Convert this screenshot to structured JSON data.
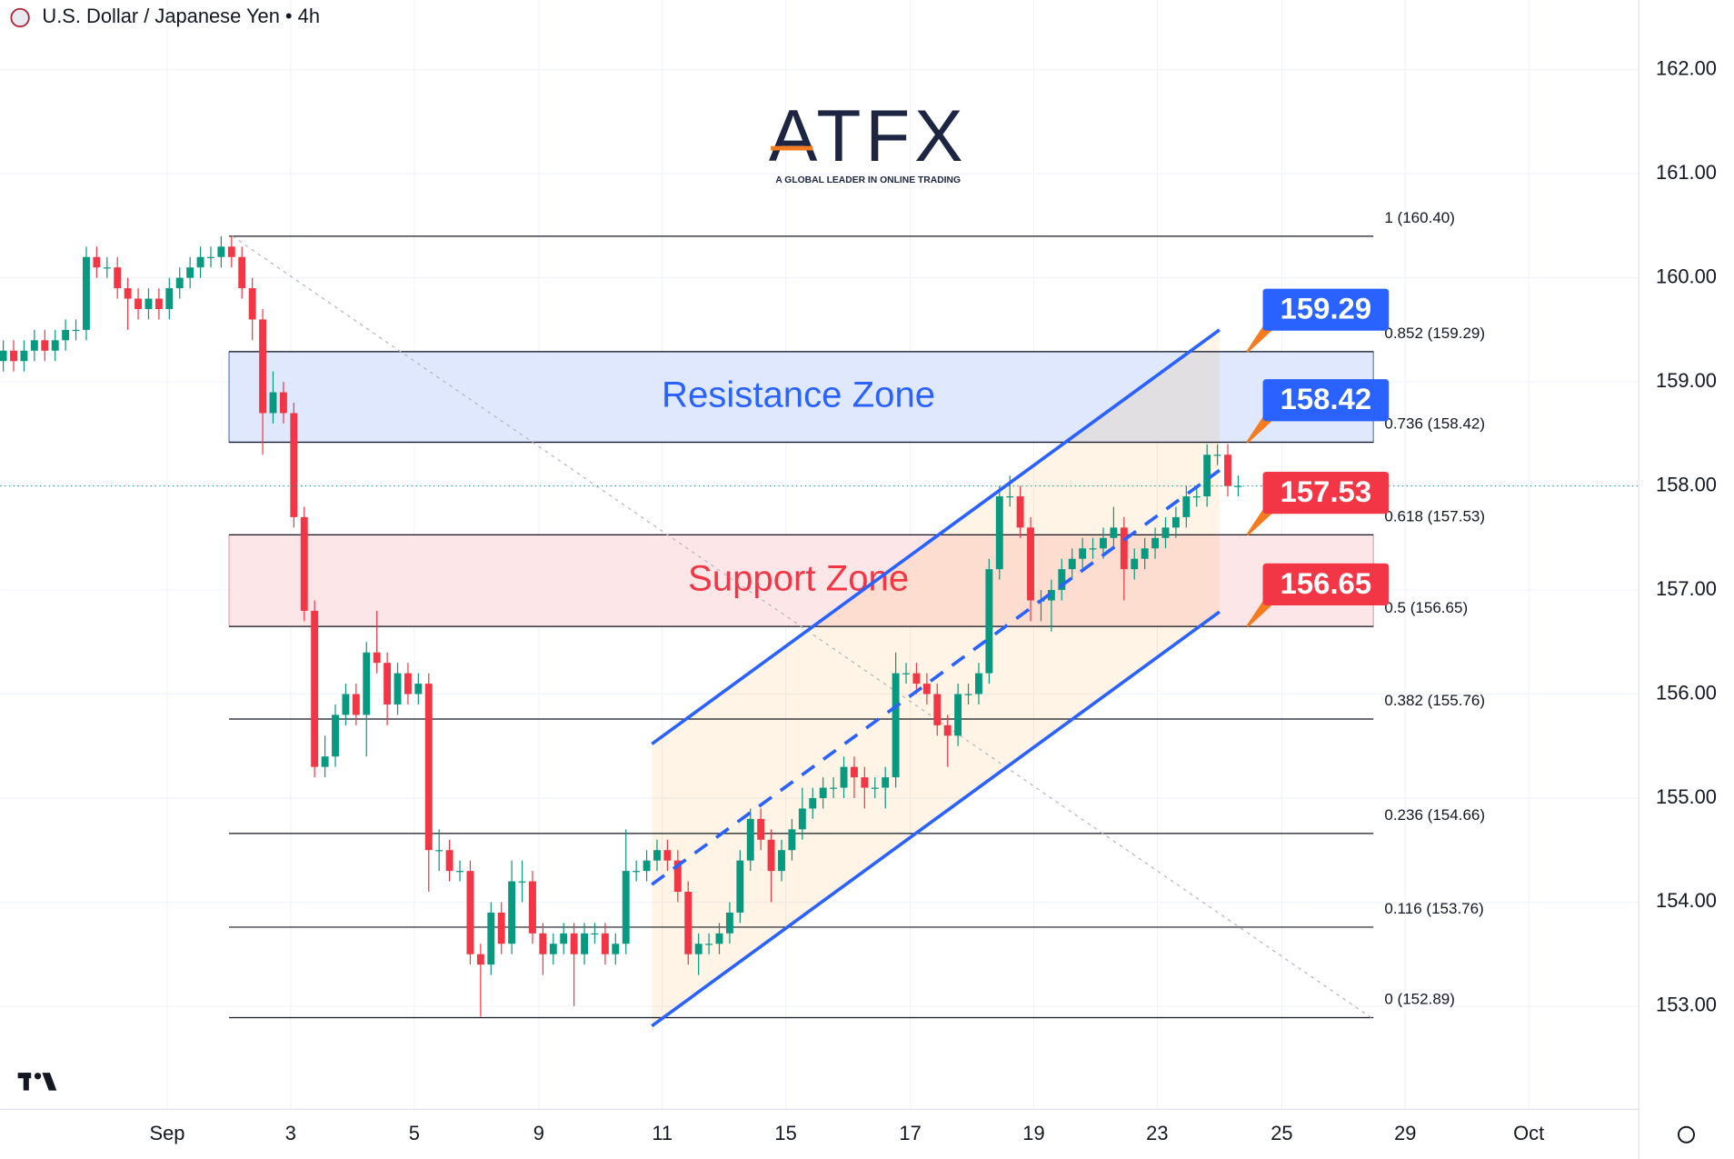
{
  "logo": {
    "name": "ATFX",
    "tagline": "A GLOBAL LEADER IN ONLINE TRADING"
  },
  "chart_data": {
    "type": "candlestick",
    "title": "U.S. Dollar / Japanese Yen • 4h",
    "up_color": "#089981",
    "down_color": "#f23645",
    "grid": true,
    "xlim": [
      -0.3,
      157.6
    ],
    "ylim": [
      152.01,
      162.67
    ],
    "xticks": [
      {
        "value": 15.8,
        "label": "Sep"
      },
      {
        "value": 27.7,
        "label": "3"
      },
      {
        "value": 39.6,
        "label": "5"
      },
      {
        "value": 51.6,
        "label": "9"
      },
      {
        "value": 63.5,
        "label": "11"
      },
      {
        "value": 75.4,
        "label": "15"
      },
      {
        "value": 87.4,
        "label": "17"
      },
      {
        "value": 99.3,
        "label": "19"
      },
      {
        "value": 111.2,
        "label": "23"
      },
      {
        "value": 123.2,
        "label": "25"
      },
      {
        "value": 135.1,
        "label": "29"
      },
      {
        "value": 147.0,
        "label": "Oct"
      }
    ],
    "yticks": [
      {
        "value": 153,
        "label": "153.00"
      },
      {
        "value": 154,
        "label": "154.00"
      },
      {
        "value": 155,
        "label": "155.00"
      },
      {
        "value": 156,
        "label": "156.00"
      },
      {
        "value": 157,
        "label": "157.00"
      },
      {
        "value": 158,
        "label": "158.00"
      },
      {
        "value": 159,
        "label": "159.00"
      },
      {
        "value": 160,
        "label": "160.00"
      },
      {
        "value": 161,
        "label": "161.00"
      },
      {
        "value": 162,
        "label": "162.00"
      }
    ],
    "x": [
      0,
      1,
      2,
      3,
      4,
      5,
      6,
      7,
      8,
      9,
      10,
      11,
      12,
      13,
      14,
      15,
      16,
      17,
      18,
      19,
      20,
      21,
      22,
      23,
      24,
      25,
      26,
      27,
      28,
      29,
      30,
      31,
      32,
      33,
      34,
      35,
      36,
      37,
      38,
      39,
      40,
      41,
      42,
      43,
      44,
      45,
      46,
      47,
      48,
      49,
      50,
      51,
      52,
      53,
      54,
      55,
      56,
      57,
      58,
      59,
      60,
      61,
      62,
      63,
      64,
      65,
      66,
      67,
      68,
      69,
      70,
      71,
      72,
      73,
      74,
      75,
      76,
      77,
      78,
      79,
      80,
      81,
      82,
      83,
      84,
      85,
      86,
      87,
      88,
      89,
      90,
      91,
      92,
      93,
      94,
      95,
      96,
      97,
      98,
      99,
      100,
      101,
      102,
      103,
      104,
      105,
      106,
      107,
      108,
      109,
      110,
      111,
      112,
      113,
      114,
      115,
      116,
      117,
      118,
      119
    ],
    "open": [
      159.2,
      159.3,
      159.2,
      159.3,
      159.4,
      159.3,
      159.4,
      159.5,
      159.5,
      160.2,
      160.1,
      160.1,
      159.9,
      159.8,
      159.7,
      159.8,
      159.7,
      159.9,
      160.0,
      160.1,
      160.2,
      160.2,
      160.3,
      160.2,
      159.9,
      159.6,
      158.7,
      158.9,
      158.7,
      157.7,
      156.8,
      155.3,
      155.4,
      155.8,
      156.0,
      155.8,
      156.4,
      156.3,
      155.9,
      156.2,
      156.0,
      156.1,
      154.5,
      154.5,
      154.3,
      154.3,
      153.5,
      153.4,
      153.9,
      153.6,
      154.2,
      154.2,
      153.7,
      153.5,
      153.6,
      153.7,
      153.5,
      153.7,
      153.7,
      153.5,
      153.6,
      154.3,
      154.3,
      154.4,
      154.5,
      154.4,
      154.1,
      153.5,
      153.6,
      153.6,
      153.7,
      153.9,
      154.4,
      154.8,
      154.6,
      154.3,
      154.5,
      154.7,
      154.9,
      155.0,
      155.1,
      155.1,
      155.3,
      155.2,
      155.1,
      155.1,
      155.2,
      156.2,
      156.2,
      156.1,
      156.0,
      155.7,
      155.6,
      156.0,
      156.0,
      156.2,
      157.2,
      157.9,
      157.9,
      157.6,
      156.9,
      156.9,
      157.0,
      157.2,
      157.3,
      157.4,
      157.4,
      157.5,
      157.6,
      157.2,
      157.3,
      157.4,
      157.5,
      157.6,
      157.7,
      157.9,
      157.9,
      158.3,
      158.3,
      158.0
    ],
    "high": [
      159.4,
      159.4,
      159.4,
      159.5,
      159.5,
      159.5,
      159.6,
      159.6,
      160.3,
      160.3,
      160.2,
      160.2,
      160.0,
      159.9,
      159.9,
      159.9,
      160.0,
      160.1,
      160.2,
      160.3,
      160.3,
      160.4,
      160.4,
      160.3,
      160.0,
      159.7,
      159.1,
      159.0,
      158.8,
      157.8,
      156.9,
      155.6,
      155.9,
      156.1,
      156.1,
      156.5,
      156.8,
      156.4,
      156.3,
      156.3,
      156.2,
      156.2,
      154.7,
      154.6,
      154.4,
      154.4,
      153.6,
      154.0,
      154.0,
      154.4,
      154.4,
      154.3,
      153.8,
      153.7,
      153.8,
      153.8,
      153.8,
      153.8,
      153.8,
      153.7,
      154.7,
      154.4,
      154.5,
      154.6,
      154.6,
      154.5,
      154.2,
      153.7,
      153.7,
      153.8,
      154.0,
      154.5,
      154.9,
      154.9,
      154.7,
      154.6,
      154.8,
      155.1,
      155.1,
      155.2,
      155.2,
      155.4,
      155.4,
      155.3,
      155.2,
      155.3,
      156.4,
      156.3,
      156.3,
      156.2,
      156.1,
      155.8,
      156.1,
      156.1,
      156.3,
      157.3,
      158.0,
      158.1,
      158.0,
      157.7,
      157.0,
      157.1,
      157.3,
      157.4,
      157.5,
      157.5,
      157.6,
      157.8,
      157.7,
      157.4,
      157.5,
      157.6,
      157.7,
      157.8,
      158.0,
      158.0,
      158.4,
      158.4,
      158.4,
      158.1
    ],
    "low": [
      159.1,
      159.1,
      159.1,
      159.2,
      159.2,
      159.2,
      159.3,
      159.4,
      159.4,
      160.0,
      160.0,
      159.8,
      159.5,
      159.6,
      159.6,
      159.6,
      159.6,
      159.8,
      159.9,
      160.0,
      160.1,
      160.1,
      160.1,
      159.8,
      159.4,
      158.3,
      158.6,
      158.6,
      157.6,
      156.7,
      155.2,
      155.2,
      155.3,
      155.7,
      155.7,
      155.4,
      156.2,
      155.7,
      155.8,
      155.9,
      155.9,
      154.1,
      154.3,
      154.2,
      154.2,
      153.4,
      152.9,
      153.3,
      153.5,
      153.5,
      154.0,
      153.6,
      153.3,
      153.4,
      153.5,
      153.0,
      153.4,
      153.6,
      153.4,
      153.4,
      153.5,
      154.2,
      154.2,
      154.3,
      154.3,
      154.0,
      153.4,
      153.3,
      153.5,
      153.5,
      153.6,
      153.8,
      154.3,
      154.5,
      154.0,
      154.2,
      154.4,
      154.6,
      154.8,
      154.9,
      155.0,
      155.0,
      155.0,
      154.9,
      155.0,
      154.9,
      155.1,
      156.1,
      156.0,
      155.9,
      155.6,
      155.3,
      155.5,
      155.9,
      155.9,
      156.1,
      157.1,
      157.8,
      157.5,
      156.7,
      156.7,
      156.6,
      156.9,
      157.1,
      157.2,
      157.3,
      157.3,
      157.4,
      156.9,
      157.1,
      157.2,
      157.3,
      157.4,
      157.5,
      157.6,
      157.8,
      157.8,
      158.2,
      157.9,
      157.9
    ],
    "close": [
      159.3,
      159.2,
      159.3,
      159.4,
      159.3,
      159.4,
      159.5,
      159.5,
      160.2,
      160.1,
      160.1,
      159.9,
      159.8,
      159.7,
      159.8,
      159.7,
      159.9,
      160.0,
      160.1,
      160.2,
      160.2,
      160.3,
      160.2,
      159.9,
      159.6,
      158.7,
      158.9,
      158.7,
      157.7,
      156.8,
      155.3,
      155.4,
      155.8,
      156.0,
      155.8,
      156.4,
      156.3,
      155.9,
      156.2,
      156.0,
      156.1,
      154.5,
      154.5,
      154.3,
      154.3,
      153.5,
      153.4,
      153.9,
      153.6,
      154.2,
      154.2,
      153.7,
      153.5,
      153.6,
      153.7,
      153.5,
      153.7,
      153.7,
      153.5,
      153.6,
      154.3,
      154.3,
      154.4,
      154.5,
      154.4,
      154.1,
      153.5,
      153.6,
      153.6,
      153.7,
      153.9,
      154.4,
      154.8,
      154.6,
      154.3,
      154.5,
      154.7,
      154.9,
      155.0,
      155.1,
      155.1,
      155.3,
      155.2,
      155.1,
      155.1,
      155.2,
      156.2,
      156.2,
      156.1,
      156.0,
      155.7,
      155.6,
      156.0,
      156.0,
      156.2,
      157.2,
      157.9,
      157.9,
      157.6,
      156.9,
      156.9,
      157.0,
      157.2,
      157.3,
      157.4,
      157.4,
      157.5,
      157.6,
      157.2,
      157.3,
      157.4,
      157.5,
      157.6,
      157.7,
      157.9,
      157.9,
      158.3,
      158.3,
      158.0,
      158.0
    ],
    "fib_levels": [
      {
        "value": 160.4,
        "label": "1 (160.40)"
      },
      {
        "value": 159.29,
        "label": "0.852 (159.29)"
      },
      {
        "value": 158.42,
        "label": "0.736 (158.42)"
      },
      {
        "value": 157.53,
        "label": "0.618 (157.53)"
      },
      {
        "value": 156.65,
        "label": "0.5 (156.65)"
      },
      {
        "value": 155.76,
        "label": "0.382 (155.76)"
      },
      {
        "value": 154.66,
        "label": "0.236 (154.66)"
      },
      {
        "value": 153.76,
        "label": "0.116 (153.76)"
      },
      {
        "value": 152.89,
        "label": "0 (152.89)"
      }
    ],
    "zones": [
      {
        "label": "Resistance Zone",
        "from": 158.42,
        "to": 159.29,
        "fill": "#dfe8fd",
        "border": "#5b7fd6",
        "text_color": "#2962ff"
      },
      {
        "label": "Support Zone",
        "from": 156.65,
        "to": 157.53,
        "fill": "#fde6e8",
        "border": "#e8a0a6",
        "text_color": "#f23645"
      }
    ],
    "channel": {
      "x": [
        62.5,
        117.2
      ],
      "upper": [
        155.52,
        159.5
      ],
      "middle": [
        154.17,
        158.15
      ],
      "lower": [
        152.81,
        156.79
      ],
      "color": "#2962ff",
      "fill": "#ff9800"
    },
    "price_labels": {
      "values": [
        159.29,
        158.42,
        157.53,
        156.65
      ],
      "colors": [
        "#2962ff",
        "#2962ff",
        "#f23645",
        "#f23645"
      ]
    }
  }
}
